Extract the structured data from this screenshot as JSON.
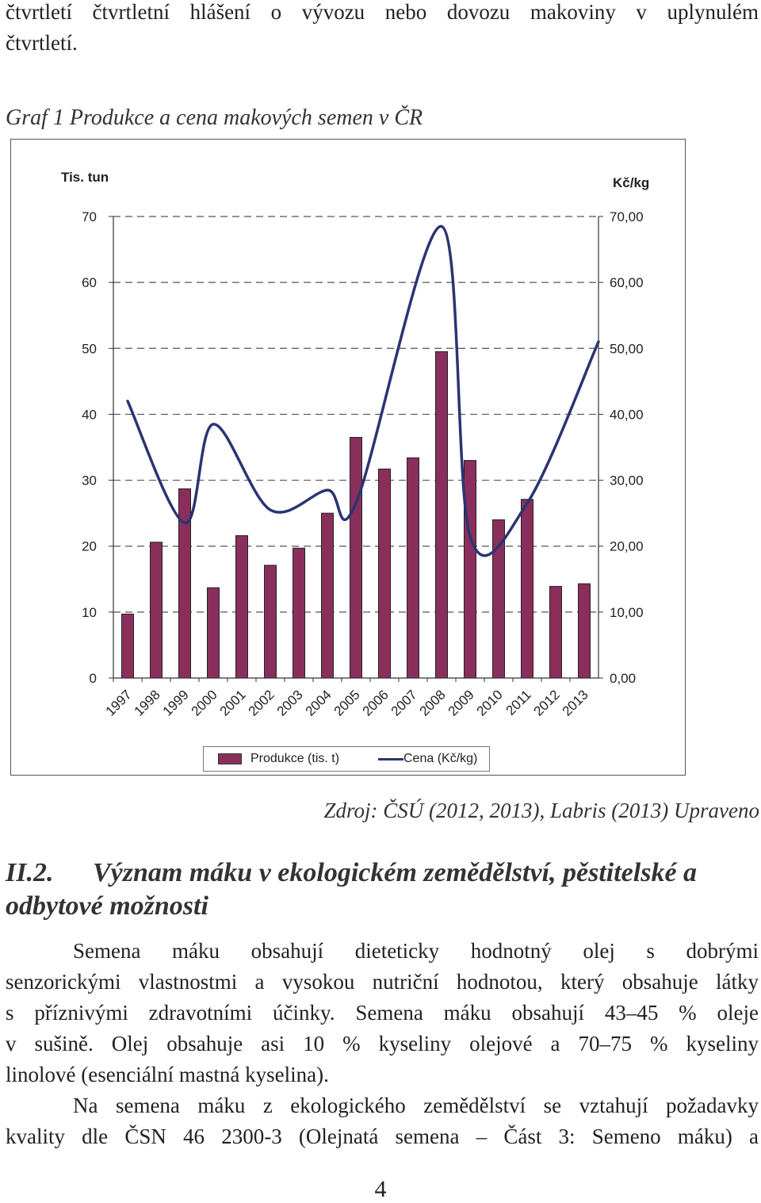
{
  "intro_lines": [
    "čtvrtletí čtvrtletní hlášení o vývozu nebo dovozu makoviny v uplynulém",
    "čtvrtletí."
  ],
  "figure_caption": "Graf 1 Produkce a cena makových semen v ČR",
  "chart_data": {
    "type": "bar",
    "categories": [
      "1997",
      "1998",
      "1999",
      "2000",
      "2001",
      "2002",
      "2003",
      "2004",
      "2005",
      "2006",
      "2007",
      "2008",
      "2009",
      "2010",
      "2011",
      "2012",
      "2013"
    ],
    "series": [
      {
        "name": "Produkce (tis. t)",
        "type": "bar",
        "axis": "left",
        "color": "#8a2f5c",
        "values": [
          9.7,
          20.6,
          28.7,
          13.7,
          21.6,
          17.1,
          19.7,
          25.0,
          36.5,
          31.7,
          33.4,
          49.5,
          33.0,
          24.0,
          27.1,
          13.9,
          14.3
        ]
      },
      {
        "name": "Cena (Kč/kg)",
        "type": "line",
        "axis": "right",
        "color": "#2b3472",
        "values": [
          42.0,
          23.5,
          38.5,
          25.5,
          28.5,
          26.5,
          68.5,
          21.5,
          26.5,
          51.0
        ],
        "x": [
          0,
          2,
          3,
          5,
          7,
          8,
          11,
          12,
          14,
          16.5
        ]
      }
    ],
    "left_axis": {
      "title": "Tis. tun",
      "ylim": [
        0,
        70
      ],
      "ticks": [
        "0",
        "10",
        "20",
        "30",
        "40",
        "50",
        "60",
        "70"
      ]
    },
    "right_axis": {
      "title": "Kč/kg",
      "ylim": [
        0,
        70
      ],
      "ticks": [
        "0,00",
        "10,00",
        "20,00",
        "30,00",
        "40,00",
        "50,00",
        "60,00",
        "70,00"
      ]
    },
    "grid": "dashed horizontal",
    "legend_position": "bottom",
    "colors": {
      "bar": "#8a2f5c",
      "line": "#2b3472",
      "grid": "#555555"
    }
  },
  "legend": {
    "bar_label": "Produkce (tis. t)",
    "line_label": "Cena (Kč/kg)"
  },
  "source": "Zdroj: ČSÚ (2012, 2013), Labris (2013) Upraveno",
  "section": {
    "number": "II.2.",
    "title": "Význam máku v ekologickém zemědělství, pěstitelské a odbytové možnosti"
  },
  "body1_lines": [
    "Semena máku obsahují dieteticky hodnotný olej s dobrými",
    "senzorickými vlastnostmi a vysokou nutriční hodnotou, který obsahuje látky",
    "s příznivými zdravotními účinky. Semena máku obsahují 43–45 % oleje",
    "v sušině. Olej obsahuje asi 10 % kyseliny olejové a 70–75 % kyseliny",
    "linolové (esenciální mastná kyselina)."
  ],
  "body2_lines": [
    "Na semena máku z ekologického zemědělství se vztahují požadavky",
    "kvality dle ČSN 46 2300-3 (Olejnatá semena – Část 3: Semeno máku) a"
  ],
  "page_number": "4"
}
